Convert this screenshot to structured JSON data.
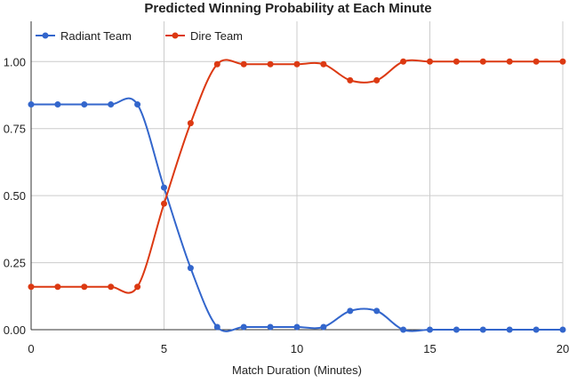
{
  "chart_data": {
    "type": "line",
    "title": "Predicted Winning Probability at Each Minute",
    "xlabel": "Match Duration (Minutes)",
    "ylabel": "",
    "xlim": [
      0,
      20
    ],
    "ylim": [
      0,
      1.15
    ],
    "grid": true,
    "legend_position": "top-left",
    "x_ticks": [
      0,
      5,
      10,
      15,
      20
    ],
    "x_tick_labels": [
      "0",
      "5",
      "10",
      "15",
      "20"
    ],
    "y_ticks": [
      0,
      0.25,
      0.5,
      0.75,
      1.0
    ],
    "y_tick_labels": [
      "0.00",
      "0.25",
      "0.50",
      "0.75",
      "1.00"
    ],
    "x": [
      0,
      1,
      2,
      3,
      4,
      5,
      6,
      7,
      8,
      9,
      10,
      11,
      12,
      13,
      14,
      15,
      16,
      17,
      18,
      19,
      20
    ],
    "series": [
      {
        "name": "Radiant Team",
        "color": "#3366cc",
        "values": [
          0.84,
          0.84,
          0.84,
          0.84,
          0.84,
          0.53,
          0.23,
          0.01,
          0.01,
          0.01,
          0.01,
          0.01,
          0.07,
          0.07,
          0.0,
          0.0,
          0.0,
          0.0,
          0.0,
          0.0,
          0.0
        ]
      },
      {
        "name": "Dire Team",
        "color": "#dc3912",
        "values": [
          0.16,
          0.16,
          0.16,
          0.16,
          0.16,
          0.47,
          0.77,
          0.99,
          0.99,
          0.99,
          0.99,
          0.99,
          0.93,
          0.93,
          1.0,
          1.0,
          1.0,
          1.0,
          1.0,
          1.0,
          1.0
        ]
      }
    ]
  }
}
